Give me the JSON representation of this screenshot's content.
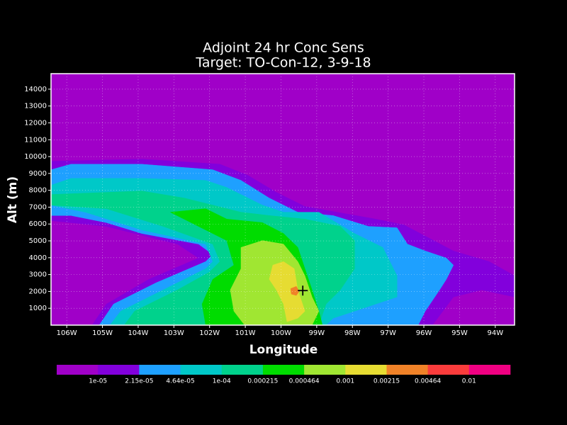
{
  "chart_data": {
    "type": "contour",
    "title": "Adjoint 24 hr Conc Sens",
    "subtitle": "Target: TO-Con-12, 3-9-18",
    "x_label": "Longitude",
    "y_label": "Alt (m)",
    "xlim": [
      -106.44,
      -93.46
    ],
    "xticks": [
      {
        "value": -106,
        "label": "106W"
      },
      {
        "value": -105,
        "label": "105W"
      },
      {
        "value": -104,
        "label": "104W"
      },
      {
        "value": -103,
        "label": "103W"
      },
      {
        "value": -102,
        "label": "102W"
      },
      {
        "value": -101,
        "label": "101W"
      },
      {
        "value": -100,
        "label": "100W"
      },
      {
        "value": -99,
        "label": "99W"
      },
      {
        "value": -98,
        "label": "98W"
      },
      {
        "value": -97,
        "label": "97W"
      },
      {
        "value": -96,
        "label": "96W"
      },
      {
        "value": -95,
        "label": "95W"
      },
      {
        "value": -94,
        "label": "94W"
      }
    ],
    "ylim": [
      0,
      14920
    ],
    "yticks": [
      1000,
      2000,
      3000,
      4000,
      5000,
      6000,
      7000,
      8000,
      9000,
      10000,
      11000,
      12000,
      13000,
      14000
    ],
    "grid": true,
    "levels": {
      "colors": [
        "#a000c8",
        "#8200dc",
        "#1ea0ff",
        "#00c8c8",
        "#00d28c",
        "#00dc00",
        "#a0e632",
        "#e6dc32",
        "#f08228",
        "#fa3c3c",
        "#f00082"
      ],
      "ticks": [
        {
          "value": 1e-05,
          "label": "1e-05"
        },
        {
          "value": 2.15e-05,
          "label": "2.15e-05"
        },
        {
          "value": 4.64e-05,
          "label": "4.64e-05"
        },
        {
          "value": 0.0001,
          "label": "1e-04"
        },
        0.000215,
        0.000464,
        0.001,
        0.00215,
        0.00464,
        0.01
      ]
    },
    "regions": [
      {
        "level": 1,
        "x": [
          -106.44,
          -103.9,
          -101.71,
          -100.92,
          -100.13,
          -99.33,
          -97.35,
          -96.56,
          -95.17,
          -94.17,
          -93.46,
          -93.46,
          -94.38,
          -95.17,
          -95.76,
          -105.29,
          -104.89,
          -103.7,
          -102.31,
          -102.9,
          -104.89,
          -106.44
        ],
        "y": [
          9720,
          9850,
          9550,
          8880,
          7880,
          7040,
          6290,
          5950,
          4400,
          3770,
          2930,
          1670,
          2090,
          1670,
          0,
          0,
          1250,
          2720,
          3980,
          4810,
          5860,
          6200
        ]
      },
      {
        "level": 2,
        "x": [
          -106.44,
          -105.88,
          -103.9,
          -101.91,
          -101.12,
          -100.33,
          -99.53,
          -98.54,
          -97.55,
          -96.75,
          -96.46,
          -95.96,
          -95.37,
          -95.17,
          -95.37,
          -95.56,
          -95.96,
          -96.16,
          -105.09,
          -104.69,
          -103.5,
          -102.11,
          -101.91,
          -102.31,
          -103.9,
          -104.89,
          -105.88,
          -106.44
        ],
        "y": [
          9220,
          9550,
          9550,
          9220,
          8590,
          7540,
          6700,
          6500,
          5860,
          5780,
          4810,
          4400,
          3980,
          3560,
          2720,
          2090,
          830,
          0,
          0,
          1250,
          2510,
          3770,
          4190,
          4810,
          5440,
          6080,
          6500,
          6500
        ]
      },
      {
        "level": 3,
        "x": [
          -106.44,
          -105.88,
          -103.9,
          -102.11,
          -101.52,
          -100.52,
          -99.93,
          -98.94,
          -97.94,
          -97.15,
          -96.75,
          -96.75,
          -97.35,
          -97.94,
          -98.54,
          -98.74,
          -104.79,
          -104.49,
          -103.3,
          -102.11,
          -101.91,
          -102.11,
          -103.9,
          -105.48,
          -106.44
        ],
        "y": [
          8300,
          8710,
          8710,
          8590,
          8170,
          7120,
          6700,
          6700,
          5440,
          4610,
          2930,
          1670,
          1250,
          830,
          410,
          0,
          0,
          830,
          2090,
          3350,
          3770,
          4810,
          5650,
          6700,
          7120
        ]
      },
      {
        "level": 4,
        "x": [
          -106.44,
          -103.9,
          -102.71,
          -101.91,
          -101.12,
          -100.33,
          -99.33,
          -98.34,
          -97.94,
          -97.94,
          -98.34,
          -98.74,
          -98.94,
          -104.39,
          -104.1,
          -102.9,
          -102.01,
          -101.71,
          -101.91,
          -103.3,
          -104.89,
          -106.44
        ],
        "y": [
          7750,
          7960,
          7540,
          7120,
          6700,
          6500,
          6290,
          5860,
          5020,
          3350,
          2090,
          1250,
          0,
          0,
          830,
          2090,
          3140,
          3770,
          4810,
          5860,
          6910,
          7120
        ]
      },
      {
        "level": 5,
        "x": [
          -103.1,
          -102.11,
          -101.52,
          -100.52,
          -99.93,
          -99.53,
          -99.33,
          -99.13,
          -98.94,
          -98.84,
          -102.11,
          -102.21,
          -101.91,
          -101.32,
          -101.52,
          -102.31
        ],
        "y": [
          6700,
          6910,
          6290,
          6080,
          5440,
          4610,
          3350,
          2090,
          830,
          0,
          0,
          1250,
          2720,
          3560,
          5020,
          5860
        ]
      },
      {
        "level": 6,
        "x": [
          -101.12,
          -100.52,
          -99.93,
          -99.53,
          -99.33,
          -99.13,
          -98.94,
          -99.13,
          -101.02,
          -101.32,
          -101.42,
          -101.12
        ],
        "y": [
          4610,
          5020,
          4810,
          3770,
          2930,
          1670,
          830,
          0,
          0,
          830,
          2090,
          3350
        ]
      },
      {
        "level": 7,
        "x": [
          -100.23,
          -99.93,
          -99.63,
          -99.53,
          -99.33,
          -99.53,
          -99.83,
          -99.93,
          -100.13,
          -100.33
        ],
        "y": [
          3560,
          3770,
          3350,
          2090,
          830,
          410,
          200,
          1250,
          2090,
          2720
        ]
      },
      {
        "level": 8,
        "x": [
          -99.73,
          -99.57,
          -99.49,
          -99.57,
          -99.71
        ],
        "y": [
          2170,
          2300,
          2010,
          1760,
          1840
        ]
      }
    ],
    "marker": {
      "x": -99.39,
      "y": 2050
    }
  }
}
